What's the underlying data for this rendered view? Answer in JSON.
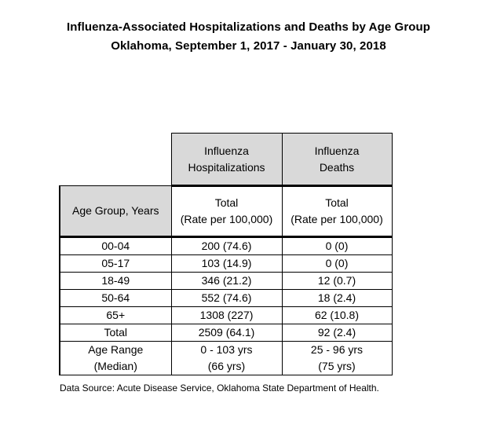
{
  "title": {
    "line1": "Influenza-Associated Hospitalizations and Deaths by Age Group",
    "line2": "Oklahoma, September 1, 2017 - January 30, 2018"
  },
  "table": {
    "top_headers": {
      "hospitalizations_line1": "Influenza",
      "hospitalizations_line2": "Hospitalizations",
      "deaths_line1": "Influenza",
      "deaths_line2": "Deaths"
    },
    "sub_headers": {
      "age_group": "Age Group, Years",
      "hosp_line1": "Total",
      "hosp_line2": "(Rate per 100,000)",
      "deaths_line1": "Total",
      "deaths_line2": "(Rate per 100,000)"
    },
    "rows": [
      {
        "age": "00-04",
        "hospitalizations": "200 (74.6)",
        "deaths": "0 (0)"
      },
      {
        "age": "05-17",
        "hospitalizations": "103 (14.9)",
        "deaths": "0 (0)"
      },
      {
        "age": "18-49",
        "hospitalizations": "346 (21.2)",
        "deaths": "12 (0.7)"
      },
      {
        "age": "50-64",
        "hospitalizations": "552 (74.6)",
        "deaths": "18 (2.4)"
      },
      {
        "age": "65+",
        "hospitalizations": "1308 (227)",
        "deaths": "62 (10.8)"
      },
      {
        "age": "Total",
        "hospitalizations": "2509 (64.1)",
        "deaths": "92 (2.4)"
      }
    ],
    "age_range": {
      "label_line1": "Age Range",
      "label_line2": "(Median)",
      "hosp_line1": "0 - 103 yrs",
      "hosp_line2": "(66 yrs)",
      "deaths_line1": "25 - 96 yrs",
      "deaths_line2": "(75 yrs)"
    }
  },
  "source": "Data Source: Acute Disease Service, Oklahoma State Department of Health."
}
